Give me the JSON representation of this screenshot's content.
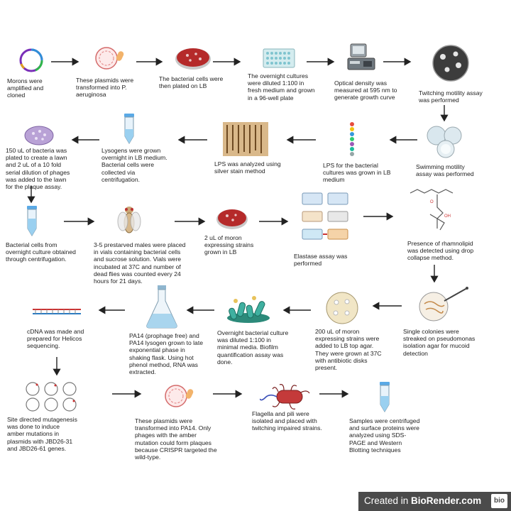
{
  "steps": [
    {
      "id": "morons",
      "caption": "Morons were amplified and cloned"
    },
    {
      "id": "plasmids",
      "caption": "These plasmids were transformed into P. aeruginosa"
    },
    {
      "id": "plated",
      "caption": "The bacterial cells were then plated on LB"
    },
    {
      "id": "overnight",
      "caption": "The overnight cultures were diluted 1:100 in fresh medium and grown in a 96-well plate"
    },
    {
      "id": "od",
      "caption": "Optical density was measured at 595 nm to generate growth curve"
    },
    {
      "id": "twitching",
      "caption": "Twitching motility assay was performed"
    },
    {
      "id": "swimming",
      "caption": "Swimming motility assay was performed"
    },
    {
      "id": "lps_grown",
      "caption": "LPS for the bacterial cultures was grown in LB medium"
    },
    {
      "id": "lps_silver",
      "caption": "LPS was analyzed using silver stain method"
    },
    {
      "id": "lysogens",
      "caption": "Lysogens were grown overnight in LB medium. Bacterial cells were collected via centrifugation."
    },
    {
      "id": "plaque",
      "caption": "150 uL of bacteria was plated to create a lawn and 2 uL of a 10 fold serial dilution of phages was added to the lawn for the plaque assay."
    },
    {
      "id": "centrifuge",
      "caption": "Bacterial cells from overnight culture obtained through centrifugation."
    },
    {
      "id": "flies",
      "caption": "3-5 prestarved males were placed in vials containing bacterial cells and sucrose solution. Vials were incubated at 37C and number of dead flies was counted every 24 hours for 21 days."
    },
    {
      "id": "moron_lb",
      "caption": "2 uL of moron expressing strains grown in LB"
    },
    {
      "id": "elastase",
      "caption": "Elastase assay was performed"
    },
    {
      "id": "rhamnolipid",
      "caption": "Presence of rhamnolipid was detected using drop collapse method."
    },
    {
      "id": "colonies",
      "caption": "Single colonies were streaked on pseudomonas isolation agar for mucoid detection"
    },
    {
      "id": "top_agar",
      "caption": "200 uL of moron expressing strains were added to LB top agar. They were grown at 37C with antibiotic disks present."
    },
    {
      "id": "biofilm",
      "caption": "Overnight bacterial culture was diluted 1:100 in minimal media. Biofilm quantification assay was done."
    },
    {
      "id": "pa14",
      "caption": "PA14 (prophage free) and PA14 lysogen grown to late exponential phase in shaking flask. Using hot phenol method, RNA was extracted."
    },
    {
      "id": "cdna",
      "caption": "cDNA was made and prepared for Helicos sequencing."
    },
    {
      "id": "mutagenesis",
      "caption": "Site directed mutagenesis was done to induce amber mutations in plasmids with JBD26-31 and JBD26-61 genes."
    },
    {
      "id": "pa14_plasmids",
      "caption": "These plasmids were transformed into PA14. Only phages with the amber mutation could form plaques because CRISPR targeted the wild-type."
    },
    {
      "id": "flagella",
      "caption": "Flagella and pili were isolated and placed with twitching impaired strains."
    },
    {
      "id": "sds",
      "caption": "Samples were centrifuged and surface proteins were analyzed using SDS-PAGE and Western Blotting techniques"
    }
  ],
  "badge": {
    "prefix": "Created in ",
    "brand": "BioRender.com",
    "logo": "bio"
  },
  "icons": [
    "plasmid-icon",
    "petri-dish-icon",
    "well-plate-icon",
    "spectrophotometer-icon",
    "tube-icon",
    "gel-icon",
    "fruit-fly-icon",
    "flask-icon",
    "dna-icon",
    "bacterium-icon",
    "pipette-icon"
  ]
}
